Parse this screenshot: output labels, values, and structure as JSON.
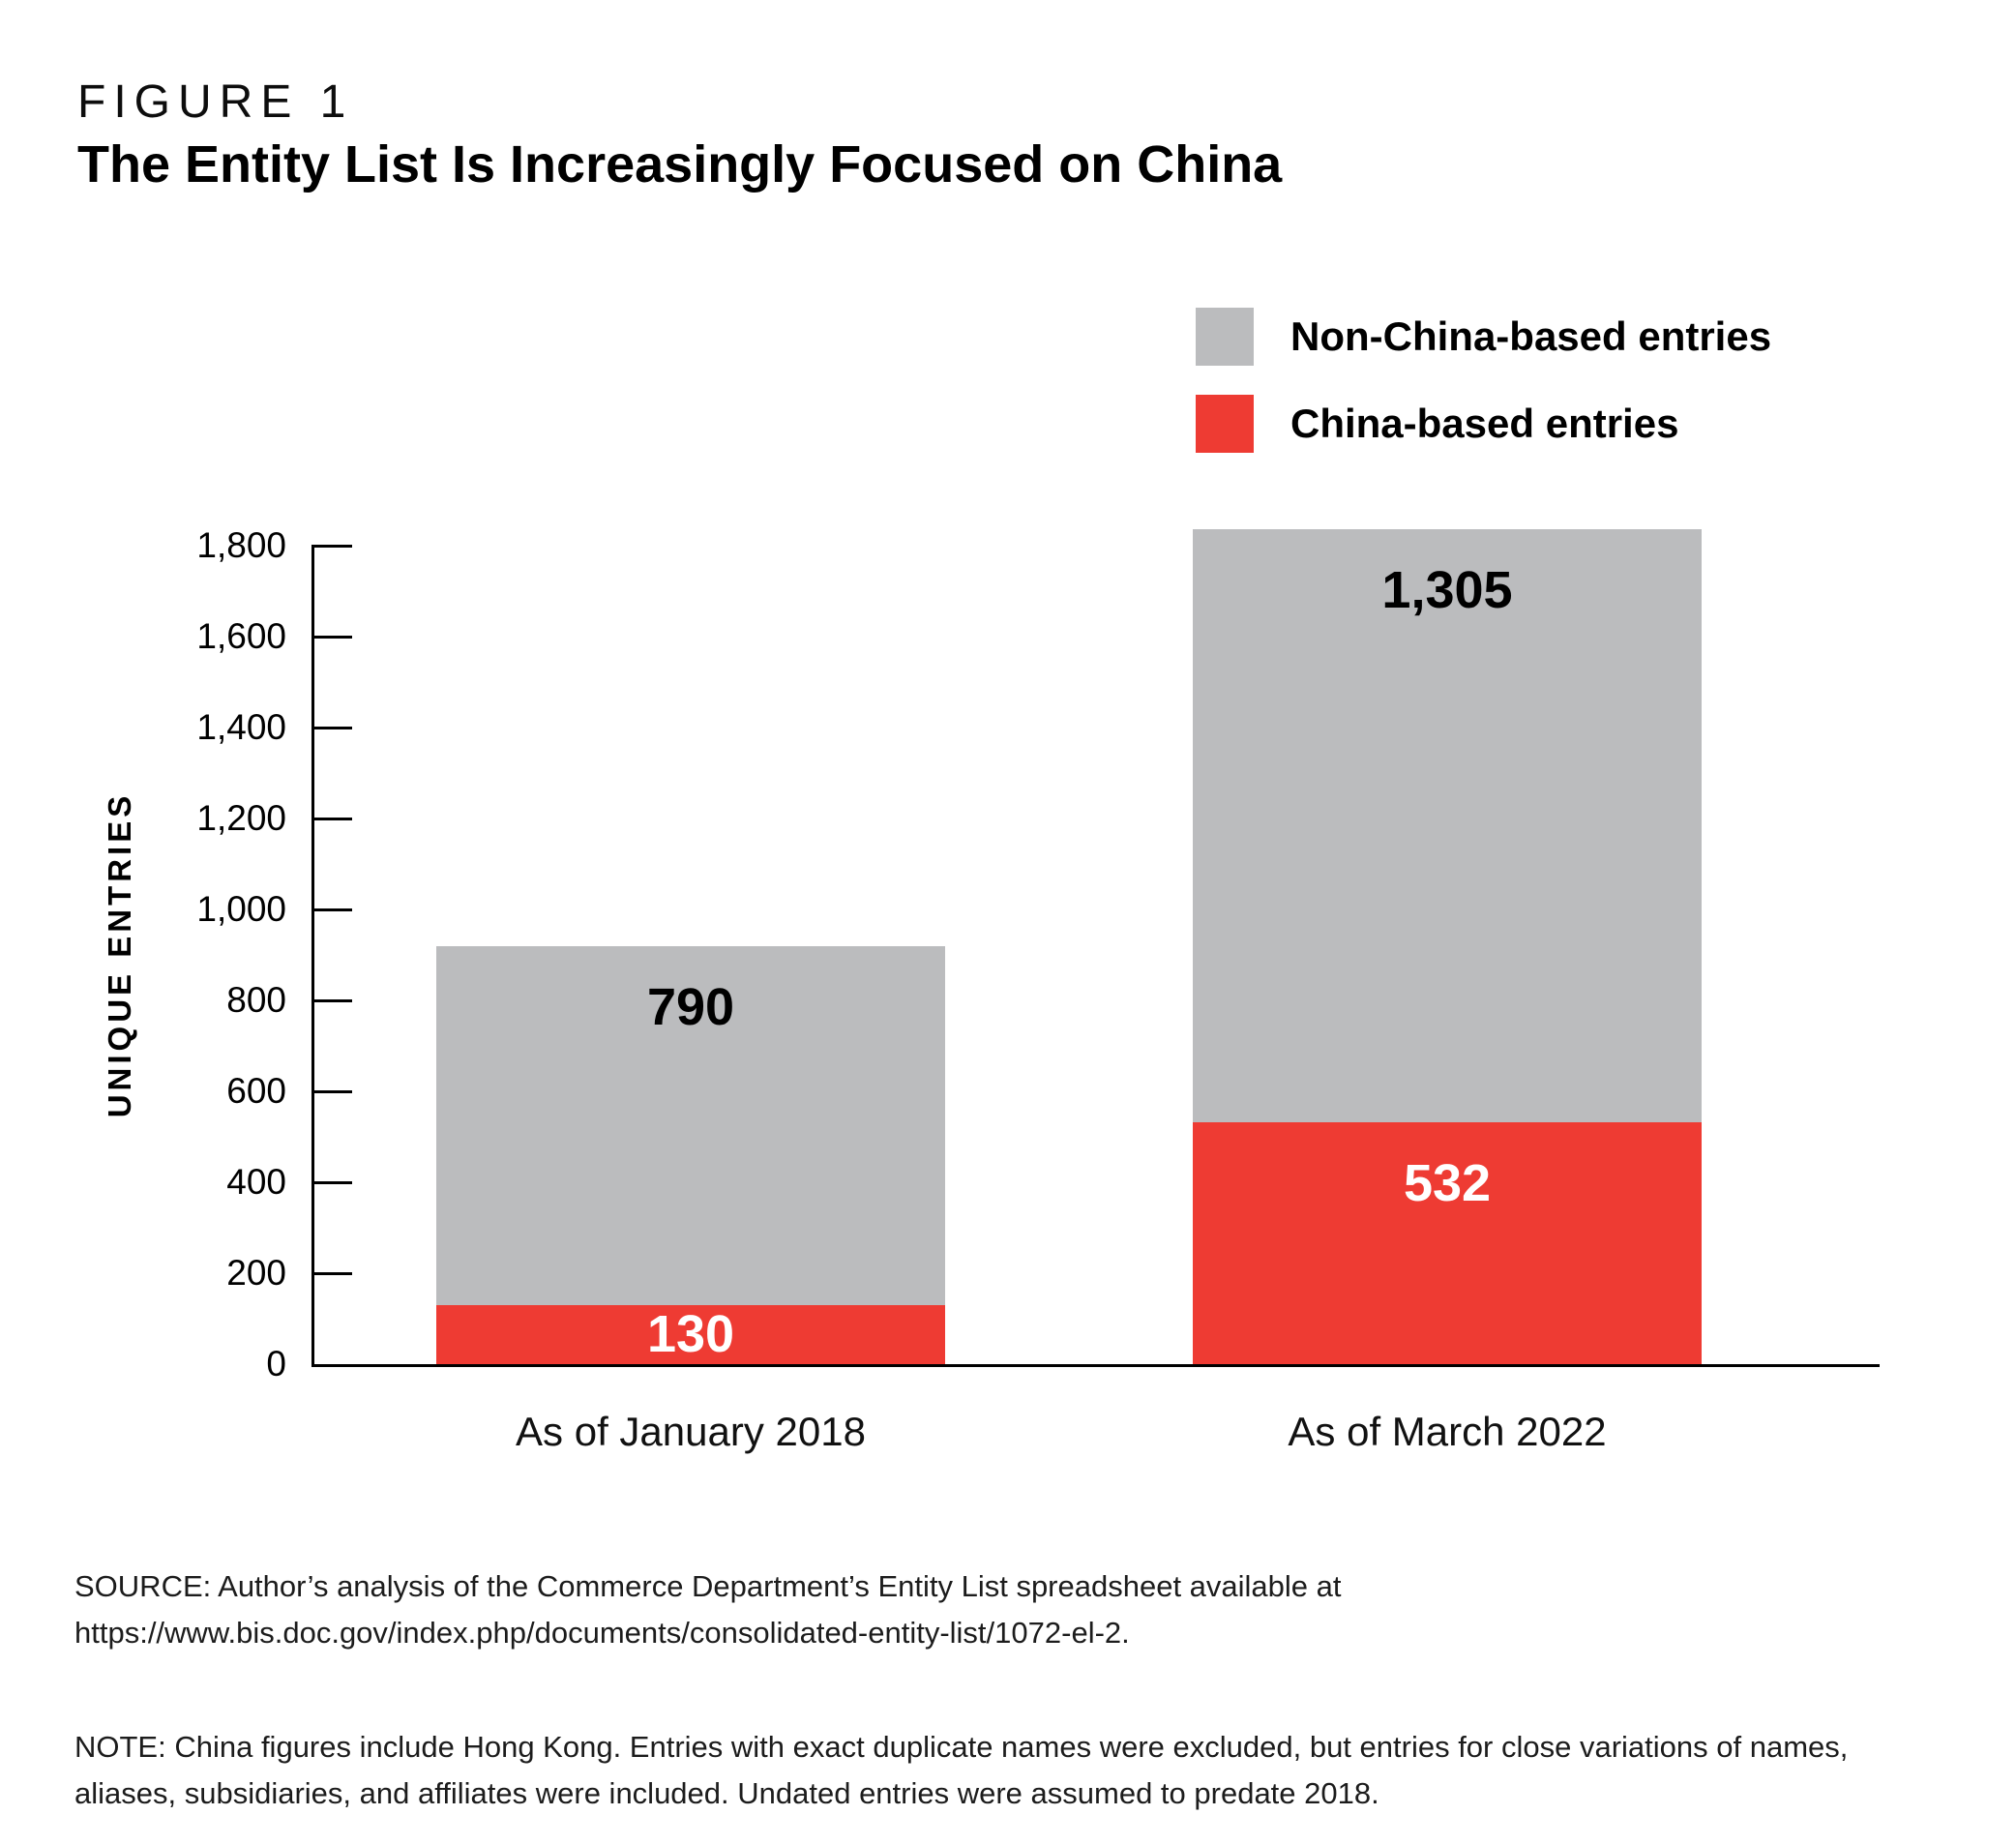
{
  "figure": {
    "kicker": "FIGURE 1",
    "title": "The Entity List Is Increasingly Focused on China"
  },
  "legend": {
    "items": [
      {
        "label": "Non-China-based entries",
        "color": "#bbbcbe"
      },
      {
        "label": "China-based entries",
        "color": "#ee3b33"
      }
    ]
  },
  "chart_data": {
    "type": "bar",
    "stacked": true,
    "title": "The Entity List Is Increasingly Focused on China",
    "categories": [
      "As of January 2018",
      "As of March 2022"
    ],
    "series": [
      {
        "name": "China-based entries",
        "color": "#ee3b33",
        "values": [
          130,
          532
        ],
        "labels": [
          "130",
          "532"
        ],
        "label_color": "#ffffff"
      },
      {
        "name": "Non-China-based entries",
        "color": "#bbbcbe",
        "values": [
          790,
          1305
        ],
        "labels": [
          "790",
          "1,305"
        ],
        "label_color": "#000000"
      }
    ],
    "ylabel": "UNIQUE ENTRIES",
    "xlabel": "",
    "ylim": [
      0,
      1800
    ],
    "yticks": [
      0,
      200,
      400,
      600,
      800,
      1000,
      1200,
      1400,
      1600,
      1800
    ],
    "ytick_labels": [
      "0",
      "200",
      "400",
      "600",
      "800",
      "1,000",
      "1,200",
      "1,400",
      "1,600",
      "1,800"
    ],
    "grid": false,
    "legend_position": "top-right",
    "bar_value_labels": true
  },
  "footer": {
    "source": "SOURCE: Author’s analysis of the Commerce Department’s Entity List spreadsheet available at https://www.bis.doc.gov/index.php/documents/consolidated-entity-list/1072-el-2.",
    "note": "NOTE: China figures include Hong Kong. Entries with exact duplicate names were excluded, but entries for close variations of names, aliases, subsidiaries, and affiliates were included. Undated entries were assumed to predate 2018."
  }
}
